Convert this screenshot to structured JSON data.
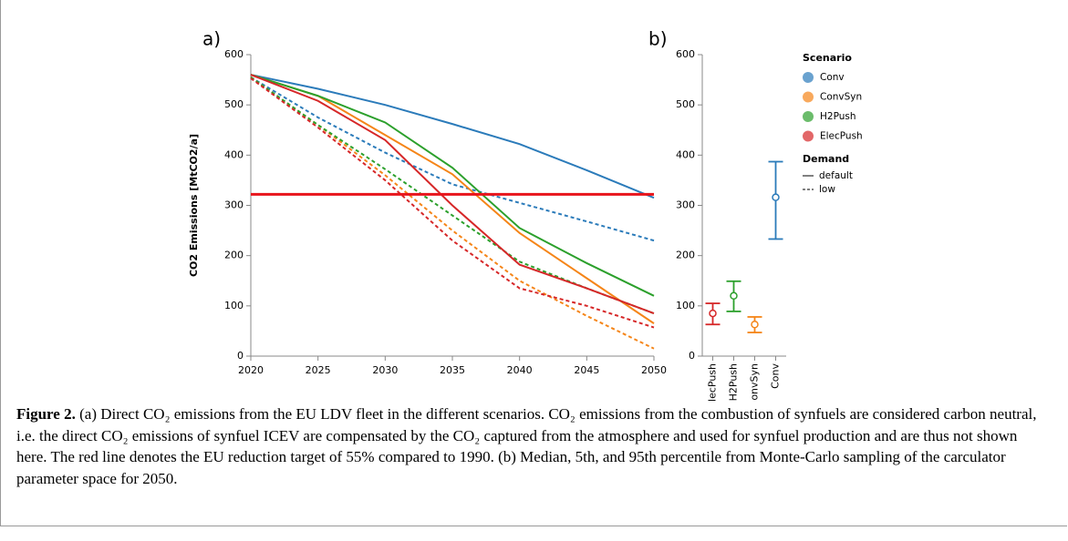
{
  "chart_data": [
    {
      "type": "line",
      "panel_label": "a)",
      "y_label": "CO2 Emissions [MtCO2/a]",
      "x": [
        2020,
        2025,
        2030,
        2035,
        2040,
        2045,
        2050
      ],
      "xlim": [
        2020,
        2050
      ],
      "xticks": [
        2020,
        2025,
        2030,
        2035,
        2040,
        2045,
        2050
      ],
      "ylim": [
        0,
        600
      ],
      "yticks": [
        0,
        100,
        200,
        300,
        400,
        500,
        600
      ],
      "series": [
        {
          "color": "#2b7bba",
          "dash": "solid",
          "values": [
            560,
            532,
            500,
            462,
            422,
            370,
            315
          ]
        },
        {
          "color": "#2b7bba",
          "dash": "dashed",
          "values": [
            555,
            475,
            405,
            342,
            305,
            268,
            230
          ]
        },
        {
          "color": "#f58518",
          "dash": "solid",
          "values": [
            560,
            518,
            440,
            362,
            245,
            155,
            65
          ]
        },
        {
          "color": "#f58518",
          "dash": "dashed",
          "values": [
            555,
            460,
            360,
            250,
            150,
            80,
            15
          ]
        },
        {
          "color": "#2ca02c",
          "dash": "solid",
          "values": [
            560,
            518,
            465,
            375,
            255,
            185,
            120
          ]
        },
        {
          "color": "#2ca02c",
          "dash": "dashed",
          "values": [
            555,
            460,
            372,
            280,
            188,
            135,
            85
          ]
        },
        {
          "color": "#d62728",
          "dash": "solid",
          "values": [
            560,
            508,
            430,
            300,
            182,
            135,
            85
          ]
        },
        {
          "color": "#d62728",
          "dash": "dashed",
          "values": [
            553,
            455,
            350,
            230,
            135,
            100,
            57
          ]
        }
      ],
      "target_line": {
        "value": 322,
        "color": "#e8141b"
      }
    },
    {
      "type": "errorbar",
      "panel_label": "b)",
      "x_label": "Scenario",
      "categories": [
        "ElecPush",
        "H2Push",
        "ConvSyn",
        "Conv"
      ],
      "colors": [
        "#d62728",
        "#2ca02c",
        "#f58518",
        "#2b7bba"
      ],
      "values": [
        85,
        120,
        63,
        316
      ],
      "lower": [
        63,
        89,
        47,
        233
      ],
      "upper": [
        105,
        149,
        78,
        387
      ],
      "ylim": [
        0,
        600
      ],
      "yticks": [
        0,
        100,
        200,
        300,
        400,
        500,
        600
      ],
      "legend": {
        "scenario_title": "Scenario",
        "scenario": [
          {
            "name": "Conv",
            "color": "#2b7bba"
          },
          {
            "name": "ConvSyn",
            "color": "#f58518"
          },
          {
            "name": "H2Push",
            "color": "#2ca02c"
          },
          {
            "name": "ElecPush",
            "color": "#d62728"
          }
        ],
        "demand_title": "Demand",
        "demand": [
          {
            "name": "default",
            "dash": "solid"
          },
          {
            "name": "low",
            "dash": "dashed"
          }
        ]
      }
    }
  ],
  "caption": {
    "label": "Figure 2.",
    "text": "(a) Direct CO₂ emissions from the EU LDV fleet in the different scenarios. CO₂ emissions from the combustion of synfuels are considered carbon neutral, i.e. the direct CO₂ emissions of synfuel ICEV are compensated by the CO₂ captured from the atmosphere and used for synfuel production and are thus not shown here. The red line denotes the EU reduction target of 55% compared to 1990. (b) Median, 5th, and 95th percentile from Monte-Carlo sampling of the carculator parameter space for 2050."
  }
}
